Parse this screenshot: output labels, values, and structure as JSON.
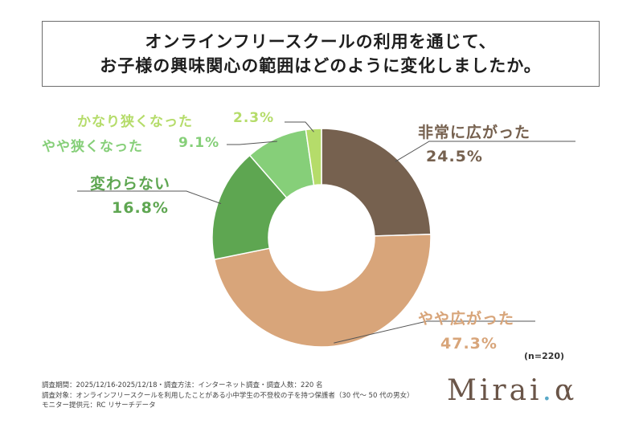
{
  "title": {
    "line1": "オンラインフリースクールの利用を通じて、",
    "line2": "お子様の興味関心の範囲はどのように変化しましたか。"
  },
  "chart_data": {
    "type": "pie",
    "donut": true,
    "slices": [
      {
        "name": "非常に広がった",
        "value": 24.5,
        "label": "24.5%",
        "color": "#76614f"
      },
      {
        "name": "やや広がった",
        "value": 47.3,
        "label": "47.3%",
        "color": "#d8a57a"
      },
      {
        "name": "変わらない",
        "value": 16.8,
        "label": "16.8%",
        "color": "#5ea651"
      },
      {
        "name": "やや狭くなった",
        "value": 9.1,
        "label": "9.1%",
        "color": "#86cf79"
      },
      {
        "name": "かなり狭くなった",
        "value": 2.3,
        "label": "2.3%",
        "color": "#b5dc6a"
      }
    ]
  },
  "sample_size": "(n=220)",
  "footer": {
    "line1": "調査期間：2025/12/16-2025/12/18・調査方法：インターネット調査・調査人数：220 名",
    "line2": "調査対象：オンラインフリースクールを利用したことがある小中学生の不登校の子を持つ保護者（30 代〜 50 代の男女）",
    "line3": "モニター提供元：RC リサーチデータ"
  },
  "logo": {
    "main": "Mirai",
    "dot": ".",
    "alpha": "α"
  }
}
